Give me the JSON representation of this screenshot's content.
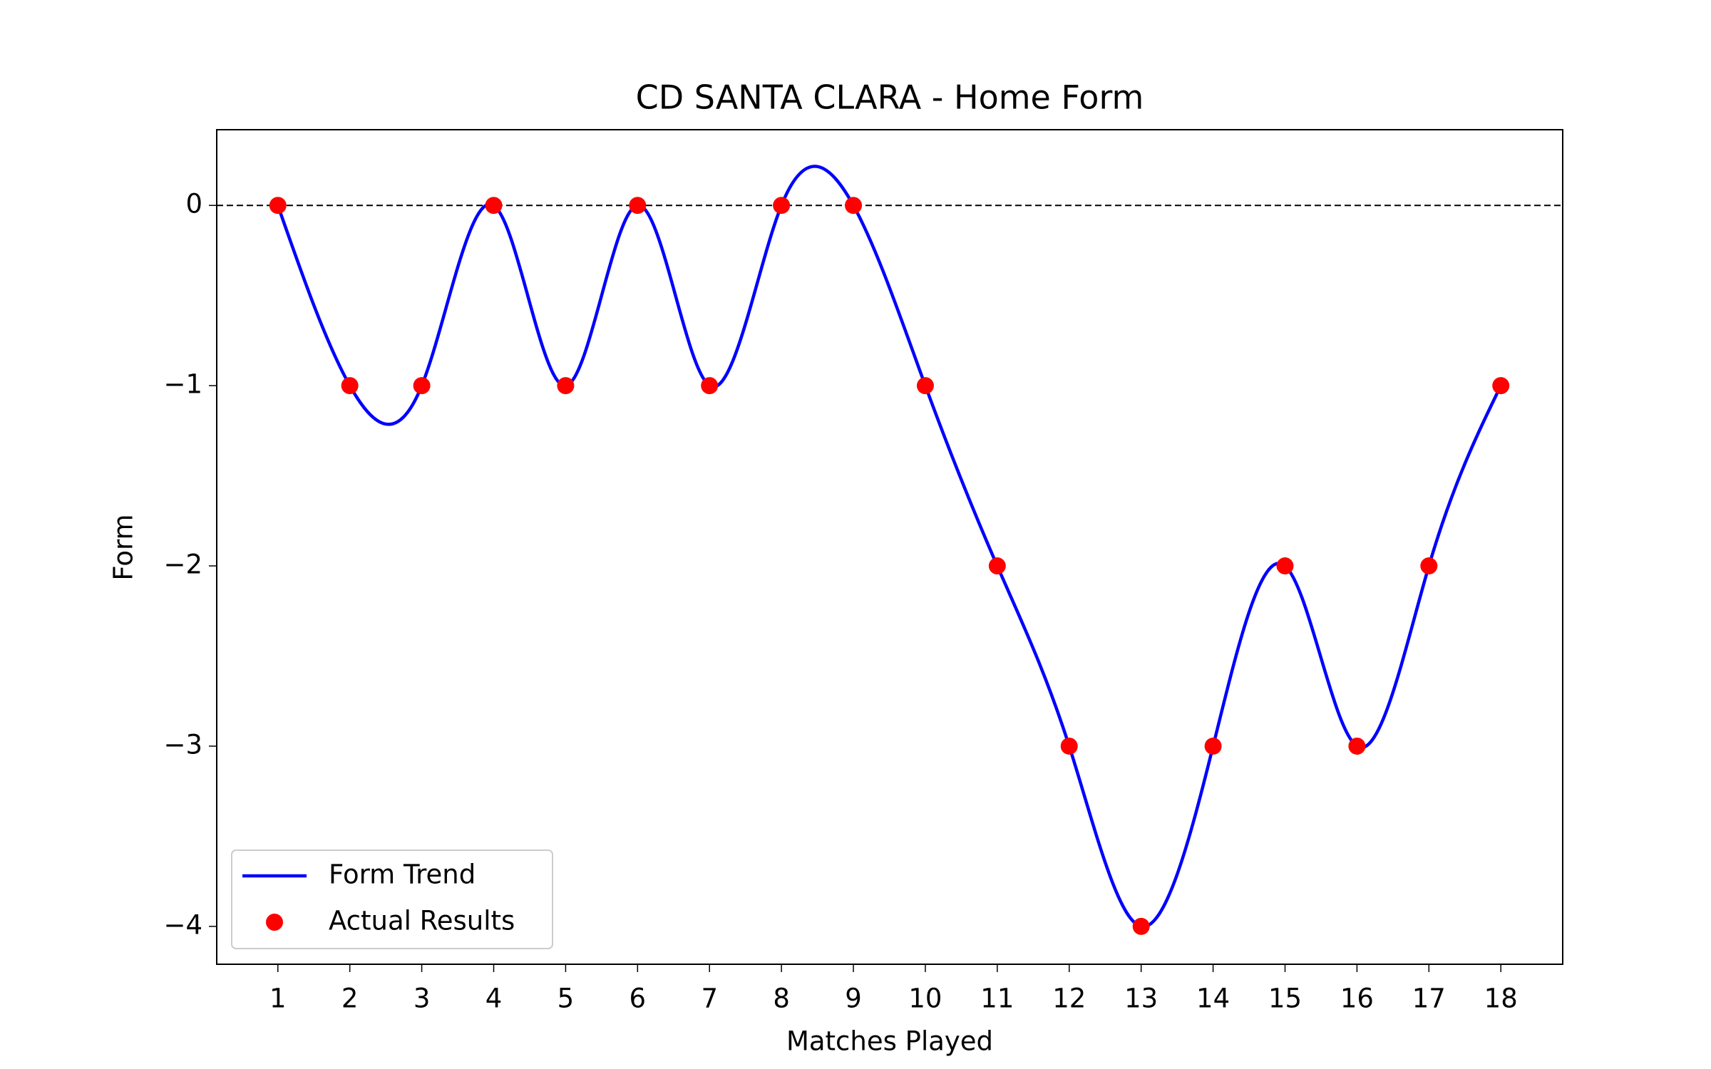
{
  "chart_data": {
    "type": "line",
    "title": "CD SANTA CLARA - Home Form",
    "x_label": "Matches Played",
    "y_label": "Form",
    "x": [
      1,
      2,
      3,
      4,
      5,
      6,
      7,
      8,
      9,
      10,
      11,
      12,
      13,
      14,
      15,
      16,
      17,
      18
    ],
    "series": [
      {
        "name": "Form Trend",
        "color": "#0000ff",
        "style": "spline",
        "values": [
          0,
          -1,
          -1,
          0,
          -1,
          0,
          -1,
          0,
          0,
          -1,
          -2,
          -3,
          -4,
          -3,
          -2,
          -3,
          -2,
          -1
        ]
      },
      {
        "name": "Actual Results",
        "color": "#ff0000",
        "style": "scatter",
        "values": [
          0,
          -1,
          -1,
          0,
          -1,
          0,
          -1,
          0,
          0,
          -1,
          -2,
          -3,
          -4,
          -3,
          -2,
          -3,
          -2,
          -1
        ]
      }
    ],
    "reference_line": 0,
    "xlim": [
      0.15,
      18.86
    ],
    "ylim": [
      -4.21,
      0.42
    ],
    "xticks": [
      1,
      2,
      3,
      4,
      5,
      6,
      7,
      8,
      9,
      10,
      11,
      12,
      13,
      14,
      15,
      16,
      17,
      18
    ],
    "yticks": [
      0,
      {
        "value": -1,
        "label": "−1"
      },
      {
        "value": -2,
        "label": "−2"
      },
      {
        "value": -3,
        "label": "−3"
      },
      {
        "value": -4,
        "label": "−4"
      }
    ],
    "legend": "lower left",
    "grid": false
  }
}
